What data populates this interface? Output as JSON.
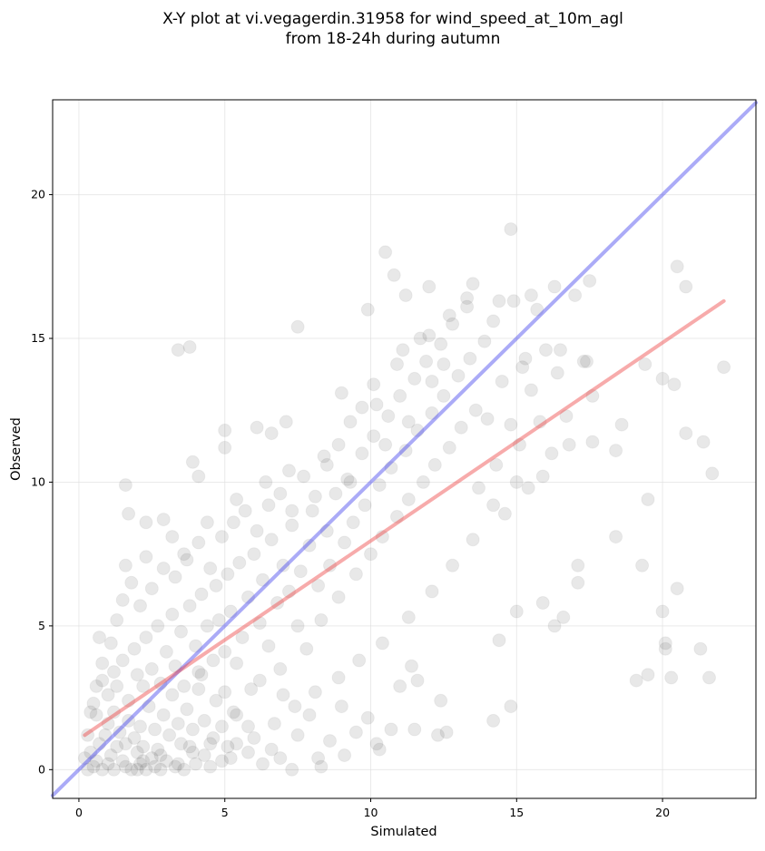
{
  "chart_data": {
    "type": "scatter",
    "title_lines": [
      "X-Y plot at vi.vegagerdin.31958 for wind_speed_at_10m_agl",
      "from 18-24h during autumn"
    ],
    "xlabel": "Simulated",
    "ylabel": "Observed",
    "xlim": [
      -0.9,
      23.2
    ],
    "ylim": [
      -1.0,
      23.3
    ],
    "xticks": [
      0,
      5,
      10,
      15,
      20
    ],
    "yticks": [
      0,
      5,
      10,
      15,
      20
    ],
    "grid": true,
    "point_color": "#000000",
    "lines": [
      {
        "role": "identity",
        "color": "#4444ee",
        "x": [
          -0.9,
          23.2
        ],
        "y": [
          -0.9,
          23.2
        ]
      },
      {
        "role": "regression",
        "color": "#ee4444",
        "x": [
          0.2,
          22.1
        ],
        "y": [
          1.2,
          16.3
        ]
      }
    ],
    "points": [
      [
        0.3,
        0.0
      ],
      [
        0.5,
        0.1
      ],
      [
        0.6,
        0.3
      ],
      [
        0.8,
        0.0
      ],
      [
        1.0,
        0.2
      ],
      [
        1.1,
        0.5
      ],
      [
        1.2,
        0.0
      ],
      [
        1.3,
        0.8
      ],
      [
        1.5,
        0.3
      ],
      [
        1.6,
        0.1
      ],
      [
        1.8,
        0.0
      ],
      [
        2.0,
        0.6
      ],
      [
        2.1,
        0.2
      ],
      [
        2.3,
        0.0
      ],
      [
        2.5,
        0.4
      ],
      [
        2.6,
        0.1
      ],
      [
        2.8,
        0.0
      ],
      [
        3.0,
        0.3
      ],
      [
        3.3,
        0.1
      ],
      [
        3.6,
        0.0
      ],
      [
        4.0,
        0.2
      ],
      [
        4.5,
        0.1
      ],
      [
        0.4,
        0.6
      ],
      [
        0.7,
        0.9
      ],
      [
        0.9,
        1.2
      ],
      [
        1.0,
        1.6
      ],
      [
        1.2,
        2.0
      ],
      [
        1.4,
        1.3
      ],
      [
        1.6,
        0.9
      ],
      [
        1.7,
        1.7
      ],
      [
        1.9,
        1.1
      ],
      [
        2.1,
        1.5
      ],
      [
        2.2,
        0.8
      ],
      [
        2.4,
        2.2
      ],
      [
        2.6,
        1.4
      ],
      [
        2.7,
        0.7
      ],
      [
        2.9,
        1.9
      ],
      [
        3.1,
        1.2
      ],
      [
        3.2,
        2.6
      ],
      [
        3.4,
        1.6
      ],
      [
        3.5,
        0.9
      ],
      [
        3.7,
        2.1
      ],
      [
        3.9,
        1.4
      ],
      [
        4.1,
        2.8
      ],
      [
        4.3,
        1.7
      ],
      [
        4.5,
        0.9
      ],
      [
        4.7,
        2.4
      ],
      [
        4.9,
        1.5
      ],
      [
        5.1,
        0.8
      ],
      [
        5.3,
        2.0
      ],
      [
        0.5,
        2.3
      ],
      [
        0.6,
        1.9
      ],
      [
        0.8,
        3.1
      ],
      [
        1.0,
        2.6
      ],
      [
        1.2,
        3.4
      ],
      [
        1.3,
        2.9
      ],
      [
        1.5,
        3.8
      ],
      [
        1.7,
        2.4
      ],
      [
        1.9,
        4.2
      ],
      [
        2.0,
        3.3
      ],
      [
        2.2,
        2.9
      ],
      [
        2.3,
        4.6
      ],
      [
        2.5,
        3.5
      ],
      [
        2.7,
        5.0
      ],
      [
        2.8,
        3.0
      ],
      [
        3.0,
        4.1
      ],
      [
        3.2,
        5.4
      ],
      [
        3.3,
        3.6
      ],
      [
        3.5,
        4.8
      ],
      [
        3.6,
        2.9
      ],
      [
        3.8,
        5.7
      ],
      [
        4.0,
        4.3
      ],
      [
        4.1,
        3.4
      ],
      [
        4.2,
        6.1
      ],
      [
        4.4,
        5.0
      ],
      [
        4.6,
        3.8
      ],
      [
        4.7,
        6.4
      ],
      [
        4.8,
        5.2
      ],
      [
        5.0,
        4.1
      ],
      [
        5.1,
        6.8
      ],
      [
        5.2,
        5.5
      ],
      [
        5.4,
        3.7
      ],
      [
        5.5,
        7.2
      ],
      [
        5.6,
        4.6
      ],
      [
        5.8,
        6.0
      ],
      [
        5.9,
        2.8
      ],
      [
        6.0,
        7.5
      ],
      [
        6.2,
        5.1
      ],
      [
        6.3,
        6.6
      ],
      [
        6.5,
        4.3
      ],
      [
        6.6,
        8.0
      ],
      [
        6.8,
        5.8
      ],
      [
        6.9,
        3.5
      ],
      [
        7.0,
        7.1
      ],
      [
        7.2,
        6.2
      ],
      [
        7.3,
        8.5
      ],
      [
        7.5,
        5.0
      ],
      [
        7.6,
        6.9
      ],
      [
        7.8,
        4.2
      ],
      [
        7.9,
        7.8
      ],
      [
        8.0,
        9.0
      ],
      [
        8.2,
        6.4
      ],
      [
        8.3,
        5.2
      ],
      [
        8.5,
        8.3
      ],
      [
        8.6,
        7.1
      ],
      [
        8.8,
        9.6
      ],
      [
        8.9,
        6.0
      ],
      [
        9.1,
        7.9
      ],
      [
        9.2,
        10.1
      ],
      [
        9.4,
        8.6
      ],
      [
        9.5,
        6.8
      ],
      [
        9.7,
        11.0
      ],
      [
        9.8,
        9.2
      ],
      [
        10.0,
        7.5
      ],
      [
        10.1,
        11.6
      ],
      [
        10.3,
        9.9
      ],
      [
        10.4,
        8.1
      ],
      [
        10.6,
        12.3
      ],
      [
        10.7,
        10.5
      ],
      [
        10.9,
        8.8
      ],
      [
        11.0,
        13.0
      ],
      [
        11.2,
        11.1
      ],
      [
        11.3,
        9.4
      ],
      [
        11.5,
        13.6
      ],
      [
        11.6,
        11.8
      ],
      [
        11.8,
        10.0
      ],
      [
        11.9,
        14.2
      ],
      [
        12.1,
        12.4
      ],
      [
        12.2,
        10.6
      ],
      [
        12.4,
        14.8
      ],
      [
        12.5,
        13.0
      ],
      [
        12.7,
        11.2
      ],
      [
        12.8,
        15.5
      ],
      [
        13.0,
        13.7
      ],
      [
        13.1,
        11.9
      ],
      [
        13.3,
        16.1
      ],
      [
        13.4,
        14.3
      ],
      [
        13.6,
        12.5
      ],
      [
        13.7,
        9.8
      ],
      [
        13.9,
        14.9
      ],
      [
        14.0,
        12.2
      ],
      [
        14.2,
        15.6
      ],
      [
        14.3,
        10.6
      ],
      [
        14.5,
        13.5
      ],
      [
        14.6,
        8.9
      ],
      [
        14.8,
        12.0
      ],
      [
        14.9,
        16.3
      ],
      [
        15.1,
        11.3
      ],
      [
        15.2,
        14.0
      ],
      [
        15.4,
        9.8
      ],
      [
        15.5,
        13.2
      ],
      [
        15.7,
        16.0
      ],
      [
        15.8,
        12.1
      ],
      [
        16.0,
        14.6
      ],
      [
        16.2,
        11.0
      ],
      [
        16.4,
        13.8
      ],
      [
        16.7,
        12.3
      ],
      [
        17.0,
        16.5
      ],
      [
        17.3,
        14.2
      ],
      [
        17.6,
        13.0
      ],
      [
        10.5,
        18.0
      ],
      [
        10.8,
        17.2
      ],
      [
        11.2,
        16.5
      ],
      [
        12.0,
        16.8
      ],
      [
        13.5,
        16.9
      ],
      [
        14.8,
        18.8
      ],
      [
        15.5,
        16.5
      ],
      [
        16.3,
        16.8
      ],
      [
        17.5,
        17.0
      ],
      [
        20.5,
        17.5
      ],
      [
        20.8,
        16.8
      ],
      [
        19.4,
        14.1
      ],
      [
        20.0,
        13.6
      ],
      [
        20.4,
        13.4
      ],
      [
        22.1,
        14.0
      ],
      [
        21.4,
        11.4
      ],
      [
        20.8,
        11.7
      ],
      [
        19.5,
        9.4
      ],
      [
        21.7,
        10.3
      ],
      [
        18.6,
        12.0
      ],
      [
        18.4,
        11.1
      ],
      [
        18.4,
        8.1
      ],
      [
        19.3,
        7.1
      ],
      [
        20.0,
        5.5
      ],
      [
        20.5,
        6.3
      ],
      [
        21.3,
        4.2
      ],
      [
        20.1,
        4.4
      ],
      [
        20.1,
        4.2
      ],
      [
        19.1,
        3.1
      ],
      [
        19.5,
        3.3
      ],
      [
        20.3,
        3.2
      ],
      [
        21.6,
        3.2
      ],
      [
        17.1,
        7.1
      ],
      [
        17.1,
        6.5
      ],
      [
        16.6,
        5.3
      ],
      [
        16.3,
        5.0
      ],
      [
        15.9,
        5.8
      ],
      [
        15.0,
        5.5
      ],
      [
        14.4,
        4.5
      ],
      [
        14.2,
        1.7
      ],
      [
        14.8,
        2.2
      ],
      [
        12.6,
        1.3
      ],
      [
        12.3,
        1.2
      ],
      [
        12.4,
        2.4
      ],
      [
        11.6,
        3.1
      ],
      [
        11.4,
        3.6
      ],
      [
        11.0,
        2.9
      ],
      [
        10.7,
        1.4
      ],
      [
        10.2,
        0.9
      ],
      [
        9.9,
        1.8
      ],
      [
        9.5,
        1.3
      ],
      [
        9.0,
        2.2
      ],
      [
        8.6,
        1.0
      ],
      [
        8.2,
        0.4
      ],
      [
        7.9,
        1.9
      ],
      [
        7.5,
        1.2
      ],
      [
        7.0,
        2.6
      ],
      [
        6.6,
        0.7
      ],
      [
        6.2,
        3.1
      ],
      [
        5.8,
        1.5
      ],
      [
        5.4,
        1.9
      ],
      [
        5.0,
        2.7
      ],
      [
        4.6,
        1.1
      ],
      [
        4.2,
        3.3
      ],
      [
        3.8,
        0.8
      ],
      [
        3.4,
        14.6
      ],
      [
        3.8,
        14.7
      ],
      [
        7.5,
        15.4
      ],
      [
        9.9,
        16.0
      ],
      [
        1.6,
        9.9
      ],
      [
        1.7,
        8.9
      ],
      [
        2.3,
        8.6
      ],
      [
        2.9,
        8.7
      ],
      [
        3.9,
        10.7
      ],
      [
        4.1,
        10.2
      ],
      [
        5.0,
        11.2
      ],
      [
        5.0,
        11.8
      ],
      [
        6.1,
        11.9
      ],
      [
        6.6,
        11.7
      ],
      [
        7.1,
        12.1
      ],
      [
        0.7,
        4.6
      ],
      [
        1.6,
        7.1
      ],
      [
        2.3,
        7.4
      ],
      [
        3.2,
        8.1
      ],
      [
        3.6,
        7.5
      ],
      [
        4.4,
        8.6
      ],
      [
        5.4,
        9.4
      ],
      [
        6.4,
        10.0
      ],
      [
        7.2,
        10.4
      ],
      [
        8.4,
        10.9
      ],
      [
        9.3,
        12.1
      ],
      [
        9.0,
        13.1
      ],
      [
        10.2,
        12.7
      ],
      [
        11.1,
        14.6
      ],
      [
        12.0,
        15.1
      ],
      [
        12.7,
        15.8
      ],
      [
        13.3,
        16.4
      ],
      [
        14.4,
        16.3
      ],
      [
        15.3,
        14.3
      ],
      [
        16.5,
        14.6
      ],
      [
        17.4,
        14.2
      ],
      [
        17.6,
        11.4
      ],
      [
        16.8,
        11.3
      ],
      [
        15.9,
        10.2
      ],
      [
        15.0,
        10.0
      ],
      [
        14.2,
        9.2
      ],
      [
        13.5,
        8.0
      ],
      [
        12.8,
        7.1
      ],
      [
        12.1,
        6.2
      ],
      [
        11.3,
        5.3
      ],
      [
        10.4,
        4.4
      ],
      [
        9.6,
        3.8
      ],
      [
        8.9,
        3.2
      ],
      [
        8.1,
        2.7
      ],
      [
        7.4,
        2.2
      ],
      [
        6.7,
        1.6
      ],
      [
        6.0,
        1.1
      ],
      [
        5.4,
        0.9
      ],
      [
        4.9,
        0.3
      ],
      [
        7.3,
        0.0
      ],
      [
        8.3,
        0.1
      ],
      [
        9.1,
        0.5
      ],
      [
        10.3,
        0.7
      ],
      [
        11.5,
        1.4
      ],
      [
        0.2,
        0.4
      ],
      [
        0.3,
        1.2
      ],
      [
        0.4,
        2.0
      ],
      [
        0.6,
        2.9
      ],
      [
        0.8,
        3.7
      ],
      [
        1.1,
        4.4
      ],
      [
        1.3,
        5.2
      ],
      [
        1.5,
        5.9
      ],
      [
        1.8,
        6.5
      ],
      [
        2.1,
        5.7
      ],
      [
        2.5,
        6.3
      ],
      [
        2.9,
        7.0
      ],
      [
        3.3,
        6.7
      ],
      [
        3.7,
        7.3
      ],
      [
        4.1,
        7.9
      ],
      [
        4.5,
        7.0
      ],
      [
        4.9,
        8.1
      ],
      [
        5.3,
        8.6
      ],
      [
        5.7,
        9.0
      ],
      [
        6.1,
        8.3
      ],
      [
        6.5,
        9.2
      ],
      [
        6.9,
        9.6
      ],
      [
        7.3,
        9.0
      ],
      [
        7.7,
        10.2
      ],
      [
        8.1,
        9.5
      ],
      [
        8.5,
        10.6
      ],
      [
        8.9,
        11.3
      ],
      [
        9.3,
        10.0
      ],
      [
        9.7,
        12.6
      ],
      [
        10.1,
        13.4
      ],
      [
        10.5,
        11.3
      ],
      [
        10.9,
        14.1
      ],
      [
        11.3,
        12.1
      ],
      [
        11.7,
        15.0
      ],
      [
        12.1,
        13.5
      ],
      [
        12.5,
        14.1
      ],
      [
        2.0,
        0.0
      ],
      [
        2.2,
        0.3
      ],
      [
        2.8,
        0.5
      ],
      [
        3.4,
        0.2
      ],
      [
        3.9,
        0.6
      ],
      [
        4.3,
        0.5
      ],
      [
        5.2,
        0.4
      ],
      [
        5.8,
        0.6
      ],
      [
        6.3,
        0.2
      ],
      [
        6.9,
        0.4
      ]
    ]
  }
}
